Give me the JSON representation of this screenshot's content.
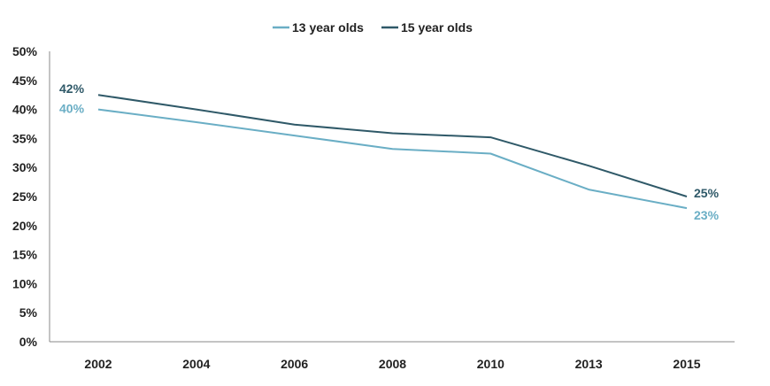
{
  "chart_data": {
    "type": "line",
    "categories": [
      "2002",
      "2004",
      "2006",
      "2008",
      "2010",
      "2013",
      "2015"
    ],
    "series": [
      {
        "name": "13 year olds",
        "color": "#6aaec5",
        "values": [
          40,
          37.8,
          35.5,
          33.2,
          32.4,
          26.2,
          23
        ]
      },
      {
        "name": "15 year olds",
        "color": "#2f5968",
        "values": [
          42.5,
          40,
          37.4,
          35.9,
          35.2,
          30.3,
          25
        ]
      }
    ],
    "data_labels": [
      {
        "series": 0,
        "index": 0,
        "text": "40%"
      },
      {
        "series": 1,
        "index": 0,
        "text": "42%"
      },
      {
        "series": 0,
        "index": 6,
        "text": "23%"
      },
      {
        "series": 1,
        "index": 6,
        "text": "25%"
      }
    ],
    "y_ticks": [
      "0%",
      "5%",
      "10%",
      "15%",
      "20%",
      "25%",
      "30%",
      "35%",
      "40%",
      "45%",
      "50%"
    ],
    "ylim": [
      0,
      50
    ],
    "grid": false,
    "legend_position": "top-center"
  }
}
